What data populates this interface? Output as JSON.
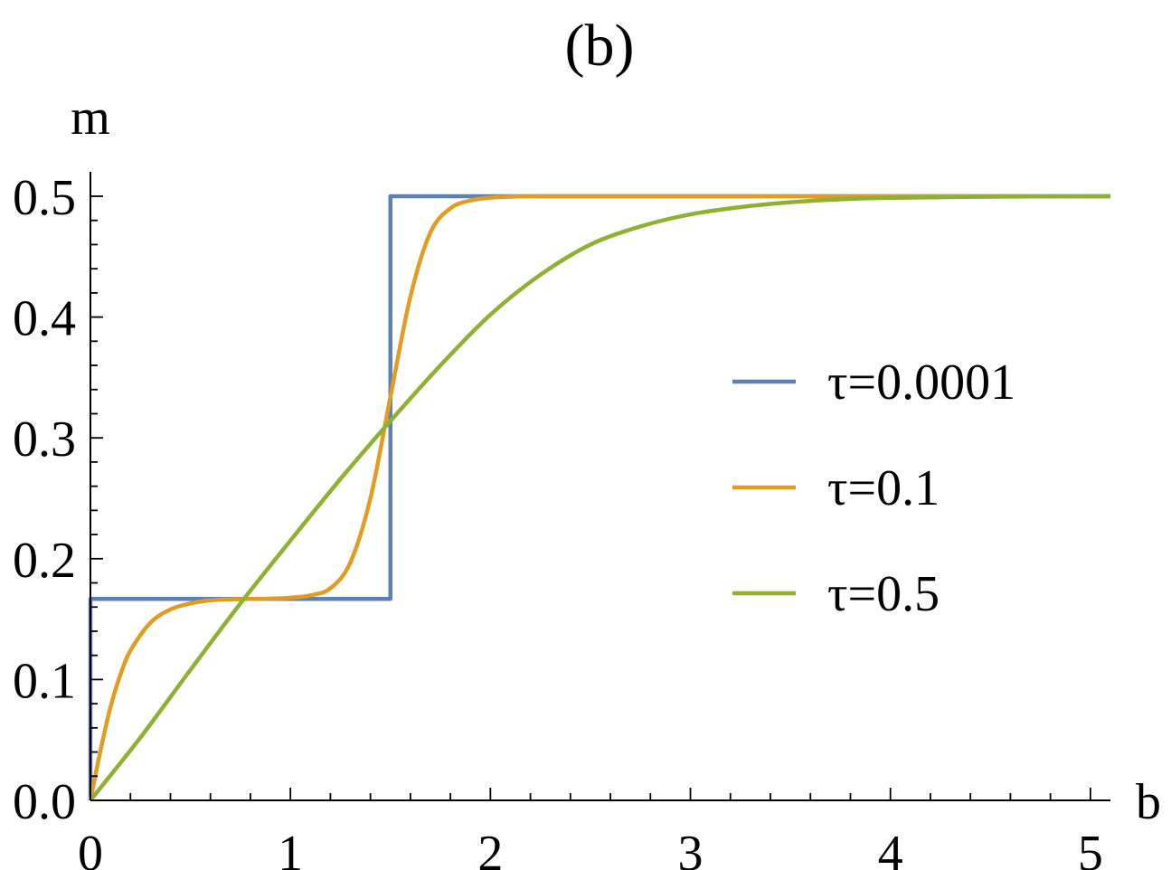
{
  "chart_data": {
    "type": "line",
    "title": "(b)",
    "xlabel": "b",
    "ylabel": "m",
    "xlim": [
      0,
      5.1
    ],
    "ylim": [
      0,
      0.5
    ],
    "x_ticks": [
      "0",
      "1",
      "2",
      "3",
      "4",
      "5"
    ],
    "y_ticks": [
      "0.0",
      "0.1",
      "0.2",
      "0.3",
      "0.4",
      "0.5"
    ],
    "legend_position": "right-center",
    "grid": false,
    "series": [
      {
        "name": "τ=0.0001",
        "color": "#5e81b5",
        "x": [
          0,
          0,
          1.5,
          1.5,
          5.1
        ],
        "y": [
          0,
          0.1667,
          0.1667,
          0.5,
          0.5
        ]
      },
      {
        "name": "τ=0.1",
        "color": "#e19c24",
        "x": [
          0,
          0.05,
          0.1,
          0.15,
          0.2,
          0.3,
          0.4,
          0.5,
          0.6,
          0.7,
          0.8,
          0.9,
          1.0,
          1.1,
          1.2,
          1.3,
          1.4,
          1.5,
          1.6,
          1.7,
          1.8,
          1.9,
          2.0,
          2.1,
          2.2,
          2.5,
          3.0,
          3.5,
          4.0,
          4.5,
          5.1
        ],
        "y": [
          0,
          0.041,
          0.077,
          0.104,
          0.124,
          0.147,
          0.158,
          0.163,
          0.1655,
          0.1664,
          0.1667,
          0.167,
          0.1677,
          0.1697,
          0.1755,
          0.197,
          0.25,
          0.334,
          0.417,
          0.47,
          0.49,
          0.4965,
          0.4988,
          0.4996,
          0.5,
          0.5,
          0.5,
          0.5,
          0.5,
          0.5,
          0.5
        ]
      },
      {
        "name": "τ=0.5",
        "color": "#8fb032",
        "x": [
          0,
          0.25,
          0.5,
          0.75,
          1.0,
          1.25,
          1.5,
          1.75,
          2.0,
          2.25,
          2.5,
          2.75,
          3.0,
          3.25,
          3.5,
          3.75,
          4.0,
          4.5,
          5.1
        ],
        "y": [
          0,
          0.052,
          0.108,
          0.163,
          0.215,
          0.266,
          0.314,
          0.36,
          0.402,
          0.435,
          0.46,
          0.475,
          0.485,
          0.491,
          0.495,
          0.4975,
          0.4987,
          0.4996,
          0.5
        ]
      }
    ]
  }
}
